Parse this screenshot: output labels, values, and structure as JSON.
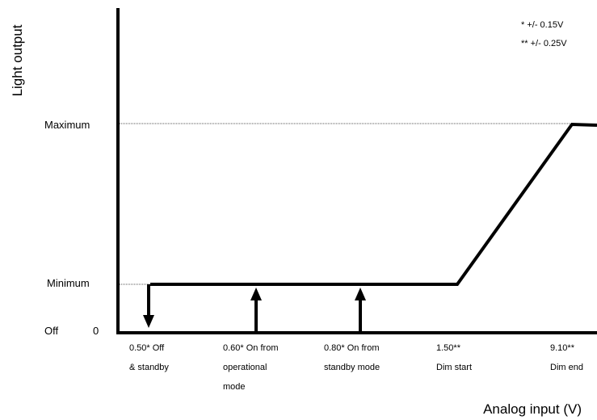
{
  "chart_data": {
    "type": "line",
    "ylabel": "Light output",
    "xlabel": "Analog input (V)",
    "y_levels": [
      "Off",
      "Minimum",
      "Maximum"
    ],
    "y_zero_label": "0",
    "notes": [
      "* +/- 0.15V",
      "** +/- 0.25V"
    ],
    "thresholds": [
      {
        "value": "0.50*",
        "lines": [
          "0.50* Off",
          "& standby"
        ],
        "arrow": "down"
      },
      {
        "value": "0.60*",
        "lines": [
          "0.60* On from",
          "operational",
          "mode"
        ],
        "arrow": "up"
      },
      {
        "value": "0.80*",
        "lines": [
          "0.80* On from",
          "standby mode"
        ],
        "arrow": "up"
      },
      {
        "value": "1.50**",
        "lines": [
          "1.50**",
          "Dim start"
        ]
      },
      {
        "value": "9.10**",
        "lines": [
          "9.10**",
          "Dim end"
        ]
      }
    ]
  },
  "colors": {
    "line": "#000000",
    "guide": "#555555"
  }
}
